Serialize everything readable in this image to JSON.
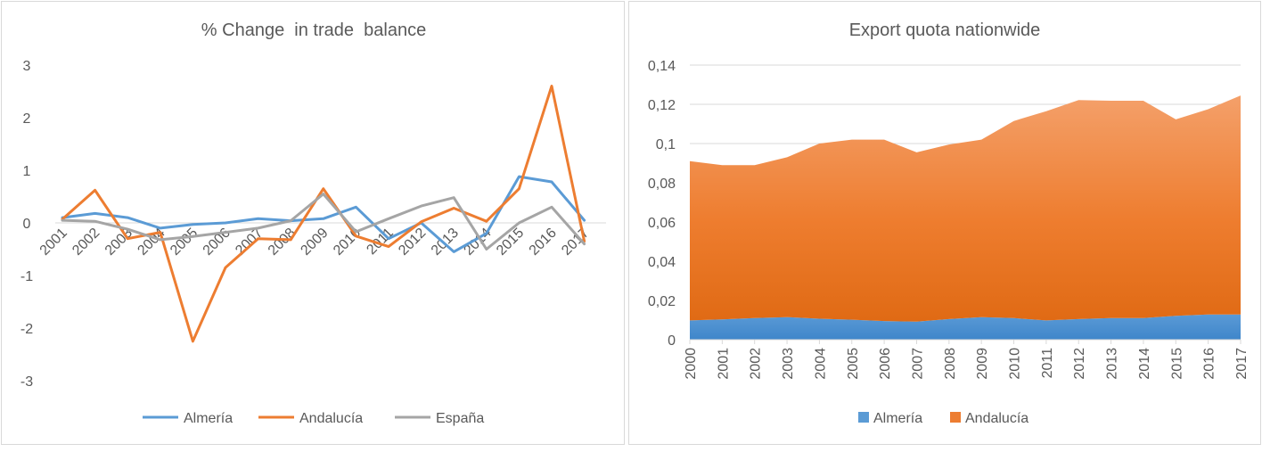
{
  "chart_data": [
    {
      "type": "line",
      "title": "% Change  in trade  balance",
      "xlabel": "",
      "ylabel": "",
      "categories": [
        "2001",
        "2002",
        "2003",
        "2004",
        "2005",
        "2006",
        "2007",
        "2008",
        "2009",
        "2010",
        "2011",
        "2012",
        "2013",
        "2014",
        "2015",
        "2016",
        "2017"
      ],
      "yticks": [
        "3",
        "2",
        "1",
        "0",
        "-1",
        "-2",
        "-3"
      ],
      "ylim": [
        -3,
        3
      ],
      "grid": false,
      "legend": "bottom",
      "series": [
        {
          "name": "Almería",
          "color": "#5B9BD5",
          "values": [
            0.1,
            0.18,
            0.1,
            -0.1,
            -0.03,
            0.0,
            0.08,
            0.04,
            0.08,
            0.3,
            -0.3,
            0.0,
            -0.55,
            -0.2,
            0.88,
            0.78,
            0.05
          ]
        },
        {
          "name": "Andalucía",
          "color": "#ED7D31",
          "values": [
            0.07,
            0.62,
            -0.3,
            -0.18,
            -2.25,
            -0.85,
            -0.3,
            -0.32,
            0.65,
            -0.25,
            -0.45,
            0.02,
            0.28,
            0.03,
            0.65,
            2.6,
            -0.35
          ]
        },
        {
          "name": "España",
          "color": "#A5A5A5",
          "values": [
            0.05,
            0.03,
            -0.12,
            -0.32,
            -0.26,
            -0.18,
            -0.1,
            0.04,
            0.55,
            -0.17,
            0.08,
            0.32,
            0.48,
            -0.5,
            0.0,
            0.3,
            -0.4
          ]
        }
      ]
    },
    {
      "type": "area",
      "title": "Export quota nationwide",
      "xlabel": "",
      "ylabel": "",
      "categories": [
        "2000",
        "2001",
        "2002",
        "2003",
        "2004",
        "2005",
        "2006",
        "2007",
        "2008",
        "2009",
        "2010",
        "2011",
        "2012",
        "2013",
        "2014",
        "2015",
        "2016",
        "2017"
      ],
      "yticks": [
        "0",
        "0,02",
        "0,04",
        "0,06",
        "0,08",
        "0,1",
        "0,12",
        "0,14"
      ],
      "ylim": [
        0,
        0.14
      ],
      "grid": true,
      "legend": "bottom",
      "series": [
        {
          "name": "Almería",
          "color": "#5B9BD5",
          "values": [
            0.0098,
            0.0103,
            0.011,
            0.0115,
            0.0107,
            0.0102,
            0.0095,
            0.0092,
            0.0105,
            0.0115,
            0.011,
            0.0098,
            0.0105,
            0.011,
            0.011,
            0.0122,
            0.0128,
            0.0128
          ]
        },
        {
          "name": "Andalucía",
          "color": "#ED7D31",
          "values": [
            0.091,
            0.089,
            0.089,
            0.093,
            0.1,
            0.102,
            0.102,
            0.0955,
            0.0995,
            0.102,
            0.1115,
            0.1165,
            0.1222,
            0.1218,
            0.1218,
            0.1123,
            0.1175,
            0.1245
          ]
        }
      ]
    }
  ]
}
